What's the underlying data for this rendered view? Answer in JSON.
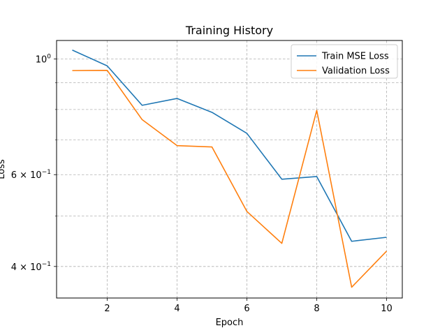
{
  "chart_data": {
    "type": "line",
    "title": "Training History",
    "xlabel": "Epoch",
    "ylabel": "Loss",
    "yscale": "log",
    "xlim": [
      0.55,
      10.45
    ],
    "ylim": [
      0.348,
      1.085
    ],
    "x_ticks": [
      2,
      4,
      6,
      8,
      10
    ],
    "y_major_ticks": [
      {
        "value": 1.0,
        "base": "10",
        "exp": "0"
      },
      {
        "value": 0.6,
        "coef": "6",
        "base": "10",
        "exp": "−1"
      },
      {
        "value": 0.4,
        "coef": "4",
        "base": "10",
        "exp": "−1"
      }
    ],
    "y_minor_gridlines": [
      0.5,
      0.7,
      0.8,
      0.9
    ],
    "grid": true,
    "legend_position": "top-right",
    "x": [
      1,
      2,
      3,
      4,
      5,
      6,
      7,
      8,
      9,
      10
    ],
    "series": [
      {
        "name": "Train MSE Loss",
        "color": "#1f77b4",
        "values": [
          1.04,
          0.97,
          0.815,
          0.84,
          0.79,
          0.72,
          0.588,
          0.595,
          0.447,
          0.455
        ]
      },
      {
        "name": "Validation Loss",
        "color": "#ff7f0e",
        "values": [
          0.95,
          0.951,
          0.765,
          0.682,
          0.678,
          0.51,
          0.443,
          0.797,
          0.365,
          0.428
        ]
      }
    ]
  }
}
